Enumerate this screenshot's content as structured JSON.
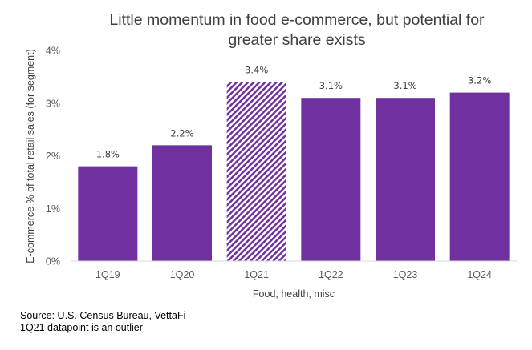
{
  "chart_data": {
    "type": "bar",
    "title_lines": [
      "Little momentum in food e-commerce, but potential for",
      "greater share exists"
    ],
    "categories": [
      "1Q19",
      "1Q20",
      "1Q21",
      "1Q22",
      "1Q23",
      "1Q24"
    ],
    "values": [
      1.8,
      2.2,
      3.4,
      3.1,
      3.1,
      3.2
    ],
    "data_labels": [
      "1.8%",
      "2.2%",
      "3.4%",
      "3.1%",
      "3.1%",
      "3.2%"
    ],
    "highlighted": [
      false,
      false,
      true,
      false,
      false,
      false
    ],
    "xlabel": "Food, health, misc",
    "ylabel": "E-commerce % of total retail sales (for segment)",
    "ylim": [
      0,
      4
    ],
    "yticks": [
      0,
      1,
      2,
      3,
      4
    ],
    "ytick_labels": [
      "0%",
      "1%",
      "2%",
      "3%",
      "4%"
    ],
    "grid": false,
    "bar_color": "#7030A0"
  },
  "footnotes": {
    "source": "Source: U.S. Census Bureau, VettaFi",
    "note": "1Q21 datapoint is an outlier"
  }
}
